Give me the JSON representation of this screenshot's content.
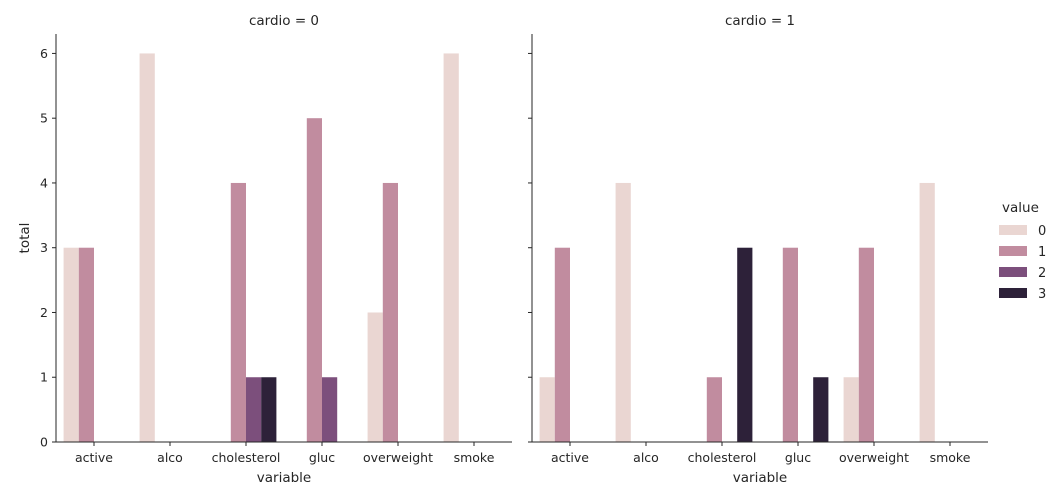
{
  "chart_data": {
    "type": "bar",
    "categories": [
      "active",
      "alco",
      "cholesterol",
      "gluc",
      "overweight",
      "smoke"
    ],
    "xlabel": "variable",
    "ylabel": "total",
    "ylim": [
      0,
      6.3
    ],
    "yticks": [
      0,
      1,
      2,
      3,
      4,
      5,
      6
    ],
    "legend": {
      "title": "value",
      "placement": "right",
      "entries": [
        {
          "label": "0",
          "color": "#ead6d2"
        },
        {
          "label": "1",
          "color": "#c18c9f"
        },
        {
          "label": "2",
          "color": "#7c4f7c"
        },
        {
          "label": "3",
          "color": "#2d2139"
        }
      ]
    },
    "panels": [
      {
        "title": "cardio = 0",
        "series": [
          {
            "name": "0",
            "values": [
              3,
              6,
              0,
              0,
              2,
              6
            ]
          },
          {
            "name": "1",
            "values": [
              3,
              0,
              4,
              5,
              4,
              0
            ]
          },
          {
            "name": "2",
            "values": [
              0,
              0,
              1,
              1,
              0,
              0
            ]
          },
          {
            "name": "3",
            "values": [
              0,
              0,
              1,
              0,
              0,
              0
            ]
          }
        ]
      },
      {
        "title": "cardio = 1",
        "series": [
          {
            "name": "0",
            "values": [
              1,
              4,
              0,
              0,
              1,
              4
            ]
          },
          {
            "name": "1",
            "values": [
              3,
              0,
              1,
              3,
              3,
              0
            ]
          },
          {
            "name": "2",
            "values": [
              0,
              0,
              0,
              0,
              0,
              0
            ]
          },
          {
            "name": "3",
            "values": [
              0,
              0,
              3,
              1,
              0,
              0
            ]
          }
        ]
      }
    ]
  }
}
